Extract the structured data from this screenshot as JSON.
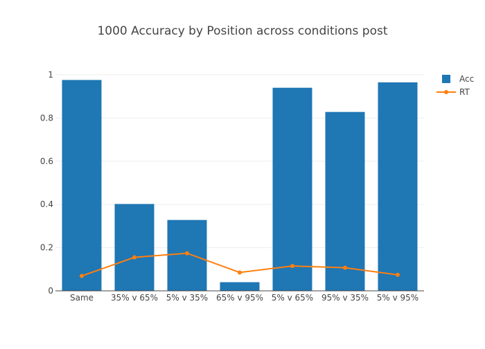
{
  "chart_data": {
    "type": "bar",
    "title": "1000 Accuracy by Position across conditions post",
    "categories": [
      "Same",
      "35% v 65%",
      "5% v 35%",
      "65% v 95%",
      "5% v 65%",
      "95% v 35%",
      "5% v 95%"
    ],
    "series": [
      {
        "name": "Acc",
        "type": "bar",
        "values": [
          0.976,
          0.402,
          0.328,
          0.04,
          0.94,
          0.828,
          0.965
        ]
      },
      {
        "name": "RT",
        "type": "line",
        "values": [
          0.069,
          0.155,
          0.174,
          0.085,
          0.115,
          0.107,
          0.074
        ]
      }
    ],
    "y_ticks": [
      "0",
      "0.2",
      "0.4",
      "0.6",
      "0.8",
      "1"
    ],
    "ylim": [
      0,
      1
    ],
    "grid": true,
    "legend_position": "top-right",
    "colors": {
      "bar": "#1f77b4",
      "line": "#ff7f0e",
      "grid": "#eeeeee",
      "axis": "#444444"
    }
  }
}
